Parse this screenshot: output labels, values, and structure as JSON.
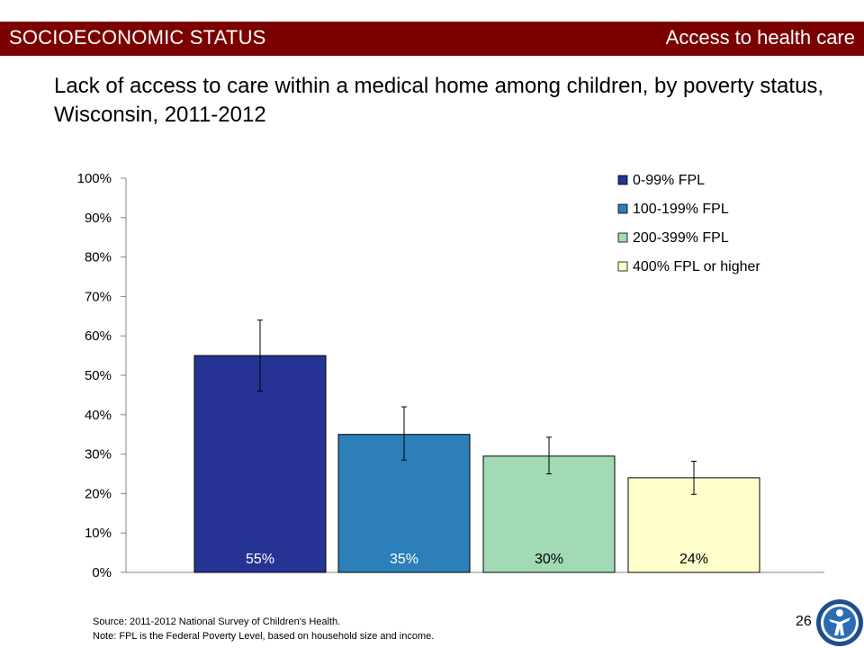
{
  "header": {
    "section": "SOCIOECONOMIC STATUS",
    "topic": "Access to health care"
  },
  "title": "Lack of access to care within a medical home among children, by poverty status, Wisconsin, 2011-2012",
  "chart_data": {
    "type": "bar",
    "title": "",
    "xlabel": "",
    "ylabel": "",
    "ylim": [
      0,
      100
    ],
    "ytick_labels": [
      "0%",
      "10%",
      "20%",
      "30%",
      "40%",
      "50%",
      "60%",
      "70%",
      "80%",
      "90%",
      "100%"
    ],
    "grid": false,
    "legend_position": "top-right",
    "series": [
      {
        "name": "0-99% FPL",
        "value": 55,
        "error_low": 46,
        "error_high": 64,
        "label": "55%",
        "color": "#253494",
        "label_color": "#ffffff"
      },
      {
        "name": "100-199% FPL",
        "value": 35,
        "error_low": 28.5,
        "error_high": 42,
        "label": "35%",
        "color": "#2c7fb8",
        "label_color": "#ffffff"
      },
      {
        "name": "200-399% FPL",
        "value": 29.5,
        "error_low": 25,
        "error_high": 34.3,
        "label": "30%",
        "color": "#a1dab4",
        "label_color": "#000000"
      },
      {
        "name": "400% FPL or higher",
        "value": 24,
        "error_low": 19.8,
        "error_high": 28.2,
        "label": "24%",
        "color": "#ffffcc",
        "label_color": "#000000"
      }
    ]
  },
  "footer": {
    "source": "Source: 2011-2012  National Survey of Children's Health.",
    "note": "Note: FPL is the Federal Poverty Level, based on household size and income."
  },
  "page_number": "26"
}
